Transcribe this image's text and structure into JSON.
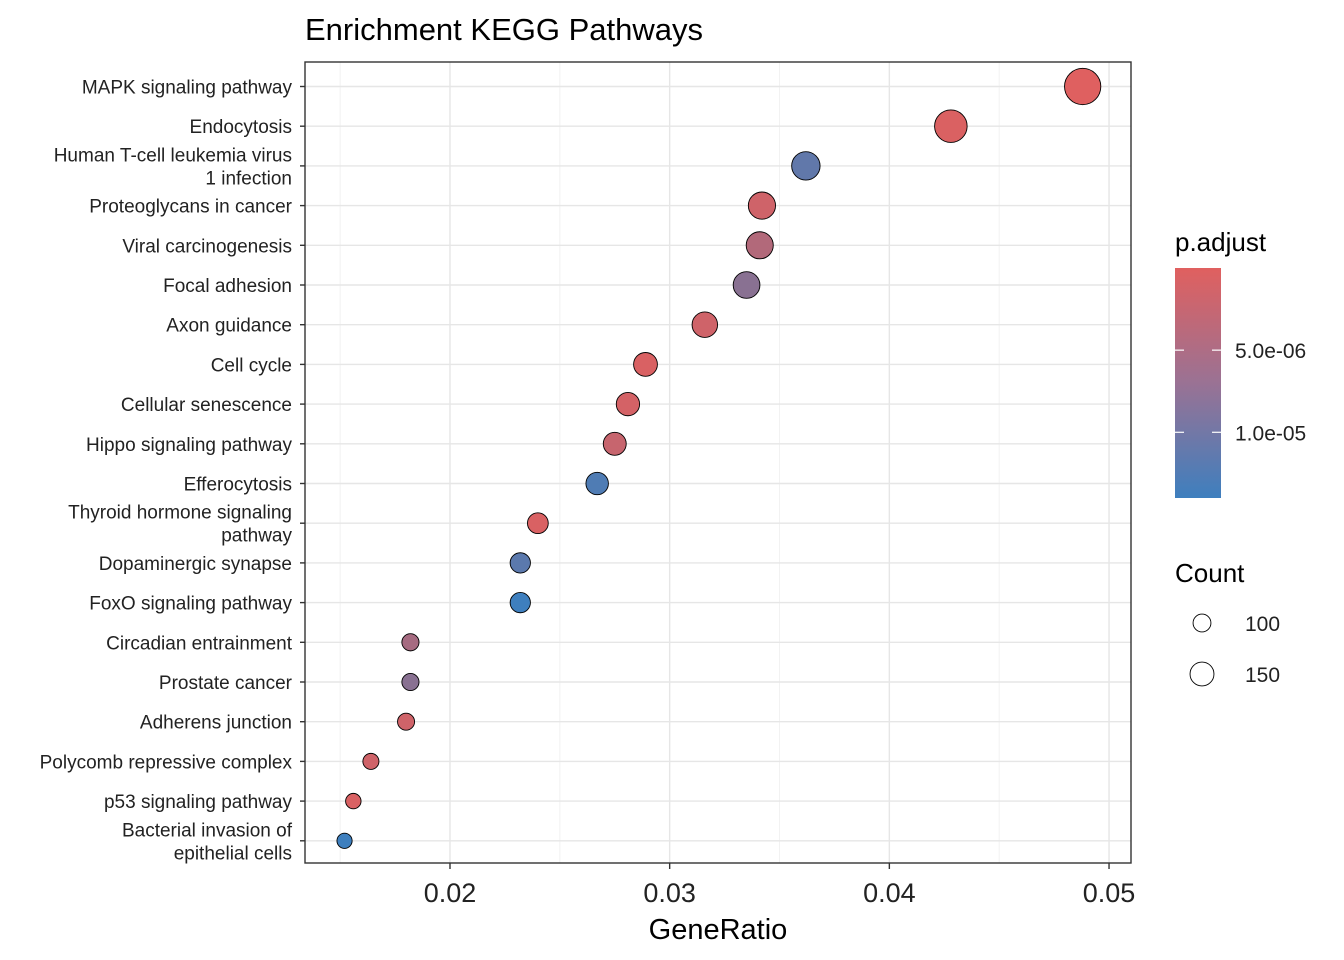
{
  "chart_data": {
    "type": "scatter",
    "title": "Enrichment KEGG Pathways",
    "xlabel": "GeneRatio",
    "ylabel": "",
    "xlim": [
      0.0134,
      0.051
    ],
    "x_ticks": [
      {
        "value": 0.02,
        "label": "0.02"
      },
      {
        "value": 0.03,
        "label": "0.03"
      },
      {
        "value": 0.04,
        "label": "0.04"
      },
      {
        "value": 0.05,
        "label": "0.05"
      }
    ],
    "grid": true,
    "legend_placement": "right",
    "color_legend": {
      "title": "p.adjust",
      "low_color": "#3e7fbe",
      "high_color": "#e0605f",
      "domain": [
        1.4e-05,
        0
      ],
      "ticks": [
        {
          "value": 5e-06,
          "label": "5.0e-06"
        },
        {
          "value": 1e-05,
          "label": "1.0e-05"
        }
      ]
    },
    "size_legend": {
      "title": "Count",
      "entries": [
        {
          "value": 100,
          "label": "100"
        },
        {
          "value": 150,
          "label": "150"
        }
      ]
    },
    "points": [
      {
        "pathway": [
          "MAPK signaling pathway"
        ],
        "gene_ratio": 0.0488,
        "count": 252,
        "p_adjust": 1e-07
      },
      {
        "pathway": [
          "Endocytosis"
        ],
        "gene_ratio": 0.0428,
        "count": 221,
        "p_adjust": 5e-07
      },
      {
        "pathway": [
          "Human T-cell leukemia virus",
          "1 infection"
        ],
        "gene_ratio": 0.0362,
        "count": 187,
        "p_adjust": 1.1e-05
      },
      {
        "pathway": [
          "Proteoglycans in cancer"
        ],
        "gene_ratio": 0.0342,
        "count": 177,
        "p_adjust": 1.5e-06
      },
      {
        "pathway": [
          "Viral carcinogenesis"
        ],
        "gene_ratio": 0.0341,
        "count": 176,
        "p_adjust": 4e-06
      },
      {
        "pathway": [
          "Focal adhesion"
        ],
        "gene_ratio": 0.0335,
        "count": 173,
        "p_adjust": 7.5e-06
      },
      {
        "pathway": [
          "Axon guidance"
        ],
        "gene_ratio": 0.0316,
        "count": 163,
        "p_adjust": 1.5e-06
      },
      {
        "pathway": [
          "Cell cycle"
        ],
        "gene_ratio": 0.0289,
        "count": 149,
        "p_adjust": 6e-07
      },
      {
        "pathway": [
          "Cellular senescence"
        ],
        "gene_ratio": 0.0281,
        "count": 145,
        "p_adjust": 1e-06
      },
      {
        "pathway": [
          "Hippo signaling pathway"
        ],
        "gene_ratio": 0.0275,
        "count": 142,
        "p_adjust": 2.2e-06
      },
      {
        "pathway": [
          "Efferocytosis"
        ],
        "gene_ratio": 0.0267,
        "count": 138,
        "p_adjust": 1.25e-05
      },
      {
        "pathway": [
          "Thyroid hormone signaling",
          "pathway"
        ],
        "gene_ratio": 0.024,
        "count": 124,
        "p_adjust": 6e-07
      },
      {
        "pathway": [
          "Dopaminergic synapse"
        ],
        "gene_ratio": 0.0232,
        "count": 120,
        "p_adjust": 1.15e-05
      },
      {
        "pathway": [
          "FoxO signaling pathway"
        ],
        "gene_ratio": 0.0232,
        "count": 120,
        "p_adjust": 1.4e-05
      },
      {
        "pathway": [
          "Circadian entrainment"
        ],
        "gene_ratio": 0.0182,
        "count": 94,
        "p_adjust": 5e-06
      },
      {
        "pathway": [
          "Prostate cancer"
        ],
        "gene_ratio": 0.0182,
        "count": 94,
        "p_adjust": 7.5e-06
      },
      {
        "pathway": [
          "Adherens junction"
        ],
        "gene_ratio": 0.018,
        "count": 93,
        "p_adjust": 1.5e-06
      },
      {
        "pathway": [
          "Polycomb repressive complex"
        ],
        "gene_ratio": 0.0164,
        "count": 85,
        "p_adjust": 1.5e-06
      },
      {
        "pathway": [
          "p53 signaling pathway"
        ],
        "gene_ratio": 0.0156,
        "count": 80,
        "p_adjust": 6e-07
      },
      {
        "pathway": [
          "Bacterial invasion of",
          "epithelial cells"
        ],
        "gene_ratio": 0.0152,
        "count": 78,
        "p_adjust": 1.4e-05
      }
    ]
  }
}
